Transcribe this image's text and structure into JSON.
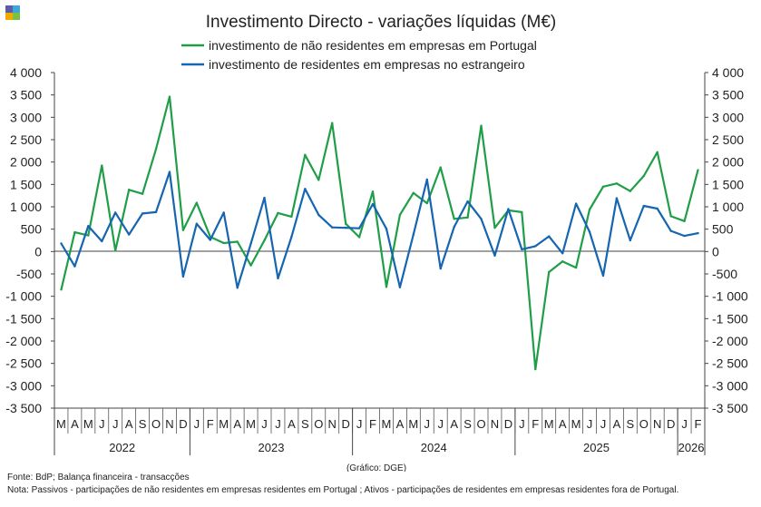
{
  "logo": {
    "colors": [
      "#5b5ea6",
      "#3fa7d6",
      "#f2a900",
      "#7ac143"
    ]
  },
  "chart_data": {
    "type": "line",
    "title": "Investimento Directo - variações líquidas (M€)",
    "xlabel": "",
    "ylabel": "",
    "ylim": [
      -3500,
      4000
    ],
    "ytick_step": 500,
    "ytick_labels": [
      "4 000",
      "3 500",
      "3 000",
      "2 500",
      "2 000",
      "1 500",
      "1 000",
      "500",
      "0",
      "-500",
      "-1 000",
      "-1 500",
      "-2 000",
      "-2 500",
      "-3 000",
      "-3 500"
    ],
    "grid": false,
    "legend_position": "top",
    "month_labels": [
      "M",
      "A",
      "M",
      "J",
      "J",
      "A",
      "S",
      "O",
      "N",
      "D",
      "J",
      "F",
      "M",
      "A",
      "M",
      "J",
      "J",
      "A",
      "S",
      "O",
      "N",
      "D",
      "J",
      "F",
      "M",
      "A",
      "M",
      "J",
      "J",
      "A",
      "S",
      "O",
      "N",
      "D",
      "J",
      "F",
      "M",
      "A",
      "M",
      "J",
      "J",
      "A",
      "S",
      "O",
      "N",
      "D",
      "J",
      "F"
    ],
    "years": [
      {
        "label": "2022",
        "start": 0,
        "end": 9
      },
      {
        "label": "2023",
        "start": 10,
        "end": 21
      },
      {
        "label": "2024",
        "start": 22,
        "end": 33
      },
      {
        "label": "2025",
        "start": 34,
        "end": 45
      },
      {
        "label": "2026",
        "start": 46,
        "end": 47
      }
    ],
    "series": [
      {
        "name": "investimento de não residentes em empresas em Portugal",
        "color": "#1f9e47",
        "values": [
          -850,
          430,
          360,
          1920,
          20,
          1380,
          1290,
          2290,
          3460,
          480,
          1090,
          330,
          190,
          220,
          -310,
          250,
          860,
          780,
          2160,
          1600,
          2870,
          620,
          320,
          1340,
          -790,
          820,
          1310,
          1080,
          1880,
          730,
          760,
          2810,
          530,
          920,
          880,
          -2630,
          -460,
          -220,
          -360,
          940,
          1450,
          1520,
          1350,
          1690,
          2220,
          790,
          680,
          1820
        ]
      },
      {
        "name": "investimento de residentes em empresas no estrangeiro",
        "color": "#1565b0",
        "values": [
          180,
          -330,
          570,
          230,
          870,
          380,
          850,
          880,
          1780,
          -560,
          620,
          260,
          870,
          -810,
          180,
          1200,
          -600,
          330,
          1400,
          820,
          540,
          530,
          520,
          1060,
          510,
          -800,
          380,
          1610,
          -380,
          550,
          1120,
          730,
          -90,
          950,
          50,
          120,
          340,
          -40,
          1070,
          440,
          -540,
          1190,
          250,
          1020,
          960,
          460,
          350,
          410
        ]
      }
    ]
  },
  "footer": {
    "credit": "(Gráfico: DGE)",
    "source": "Fonte: BdP; Balança financeira - transacções",
    "note": "Nota: Passivos - participações de não residentes em empresas residentes em Portugal ; Ativos - participações de residentes em empresas residentes fora de Portugal."
  }
}
